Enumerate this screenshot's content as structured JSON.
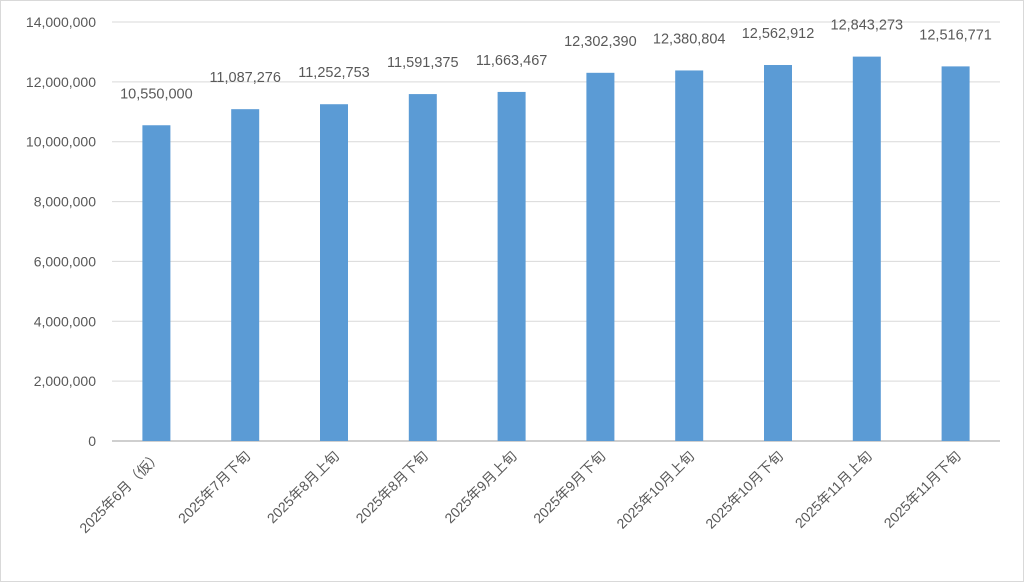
{
  "chart_data": {
    "type": "bar",
    "title": "",
    "xlabel": "",
    "ylabel": "",
    "categories": [
      "2025年6月（仮）",
      "2025年7月下旬",
      "2025年8月上旬",
      "2025年8月下旬",
      "2025年9月上旬",
      "2025年9月下旬",
      "2025年10月上旬",
      "2025年10月下旬",
      "2025年11月上旬",
      "2025年11月下旬"
    ],
    "values": [
      10550000,
      11087276,
      11252753,
      11591375,
      11663467,
      12302390,
      12380804,
      12562912,
      12843273,
      12516771
    ],
    "data_labels": [
      "10,550,000",
      "11,087,276",
      "11,252,753",
      "11,591,375",
      "11,663,467",
      "12,302,390",
      "12,380,804",
      "12,562,912",
      "12,843,273",
      "12,516,771"
    ],
    "ylim": [
      0,
      14000000
    ],
    "yticks": [
      0,
      2000000,
      4000000,
      6000000,
      8000000,
      10000000,
      12000000,
      14000000
    ],
    "ytick_labels": [
      "0",
      "2,000,000",
      "4,000,000",
      "6,000,000",
      "8,000,000",
      "10,000,000",
      "12,000,000",
      "14,000,000"
    ],
    "grid": true,
    "legend": "none",
    "bar_color": "#5b9bd5",
    "grid_color": "#d9d9d9"
  }
}
